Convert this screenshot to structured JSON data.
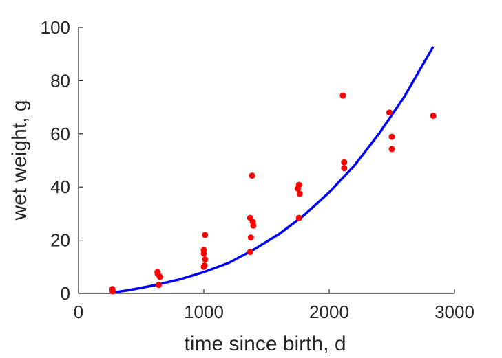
{
  "chart_data": {
    "type": "scatter",
    "title": "",
    "xlabel": "time since birth, d",
    "ylabel": "wet weight, g",
    "xlim": [
      0,
      3000
    ],
    "ylim": [
      0,
      100
    ],
    "xticks": [
      0,
      1000,
      2000,
      3000
    ],
    "yticks": [
      0,
      20,
      40,
      60,
      80,
      100
    ],
    "xtick_labels": [
      "0",
      "1000",
      "2000",
      "3000"
    ],
    "ytick_labels": [
      "0",
      "20",
      "40",
      "60",
      "80",
      "100"
    ],
    "grid": false,
    "series": [
      {
        "kind": "scatter",
        "color": "#ff0000",
        "points": [
          {
            "x": 270,
            "y": 1.6
          },
          {
            "x": 272,
            "y": 0.8
          },
          {
            "x": 630,
            "y": 8.0
          },
          {
            "x": 632,
            "y": 7.3
          },
          {
            "x": 650,
            "y": 6.2
          },
          {
            "x": 640,
            "y": 3.2
          },
          {
            "x": 1000,
            "y": 16.3
          },
          {
            "x": 1000,
            "y": 15.0
          },
          {
            "x": 1010,
            "y": 22.0
          },
          {
            "x": 1010,
            "y": 12.8
          },
          {
            "x": 1005,
            "y": 10.5
          },
          {
            "x": 1000,
            "y": 10.0
          },
          {
            "x": 1370,
            "y": 28.4
          },
          {
            "x": 1390,
            "y": 26.9
          },
          {
            "x": 1395,
            "y": 25.5
          },
          {
            "x": 1385,
            "y": 44.3
          },
          {
            "x": 1375,
            "y": 21.0
          },
          {
            "x": 1370,
            "y": 15.6
          },
          {
            "x": 1750,
            "y": 39.4
          },
          {
            "x": 1760,
            "y": 40.8
          },
          {
            "x": 1765,
            "y": 37.5
          },
          {
            "x": 1760,
            "y": 28.4
          },
          {
            "x": 2110,
            "y": 74.4
          },
          {
            "x": 2120,
            "y": 49.3
          },
          {
            "x": 2120,
            "y": 47.1
          },
          {
            "x": 2480,
            "y": 68.0
          },
          {
            "x": 2500,
            "y": 58.9
          },
          {
            "x": 2500,
            "y": 54.3
          },
          {
            "x": 2830,
            "y": 66.8
          }
        ]
      },
      {
        "kind": "line",
        "color": "#0000ff",
        "x": [
          270,
          400,
          600,
          800,
          1000,
          1200,
          1400,
          1600,
          1800,
          2000,
          2200,
          2400,
          2600,
          2830
        ],
        "y": [
          0.3,
          1.2,
          3.0,
          5.2,
          8.0,
          11.5,
          16.5,
          22.3,
          29.4,
          38.0,
          48.0,
          60.2,
          74.0,
          92.8
        ]
      }
    ]
  }
}
